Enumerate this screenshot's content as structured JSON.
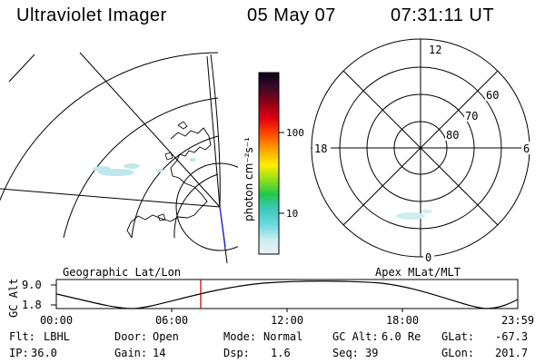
{
  "header": {
    "title": "Ultraviolet Imager",
    "date": "05 May 07",
    "time": "07:31:11 UT"
  },
  "colorbar": {
    "unit_label": "photon cm⁻²s⁻¹",
    "ticks": [
      "100",
      "10"
    ]
  },
  "polar_plot": {
    "lat_labels": [
      "60",
      "70",
      "80"
    ],
    "mlt_labels": {
      "top": "12",
      "left": "18",
      "right": "6",
      "bottom": "0"
    }
  },
  "panel_labels": {
    "left": "Geographic Lat/Lon",
    "right": "Apex MLat/MLT"
  },
  "orbit_plot": {
    "ylabel": "GC Alt",
    "y_ticks": [
      "9.0",
      "1.8"
    ],
    "x_ticks": [
      "00:00",
      "06:00",
      "12:00",
      "18:00",
      "23:59"
    ]
  },
  "info": {
    "row1": [
      {
        "label": "Flt:",
        "value": "LBHL"
      },
      {
        "label": "Door:",
        "value": "Open"
      },
      {
        "label": "Mode:",
        "value": "Normal"
      },
      {
        "label": "GC Alt:",
        "value": "6.0 Re"
      },
      {
        "label": "GLat:",
        "value": "-67.3"
      }
    ],
    "row2": [
      {
        "label": "IP:",
        "value": "36.0"
      },
      {
        "label": "Gain:",
        "value": "14"
      },
      {
        "label": "Dsp:",
        "value": "1.6"
      },
      {
        "label": "Seq:",
        "value": "39"
      },
      {
        "label": "GLon:",
        "value": "201.7"
      }
    ]
  },
  "colors": {
    "foreground": "#000000",
    "background": "#ffffff",
    "time_marker": "#cc0000",
    "ground_track": "#2222cc",
    "auroral_emission": "#bfe8ee"
  }
}
